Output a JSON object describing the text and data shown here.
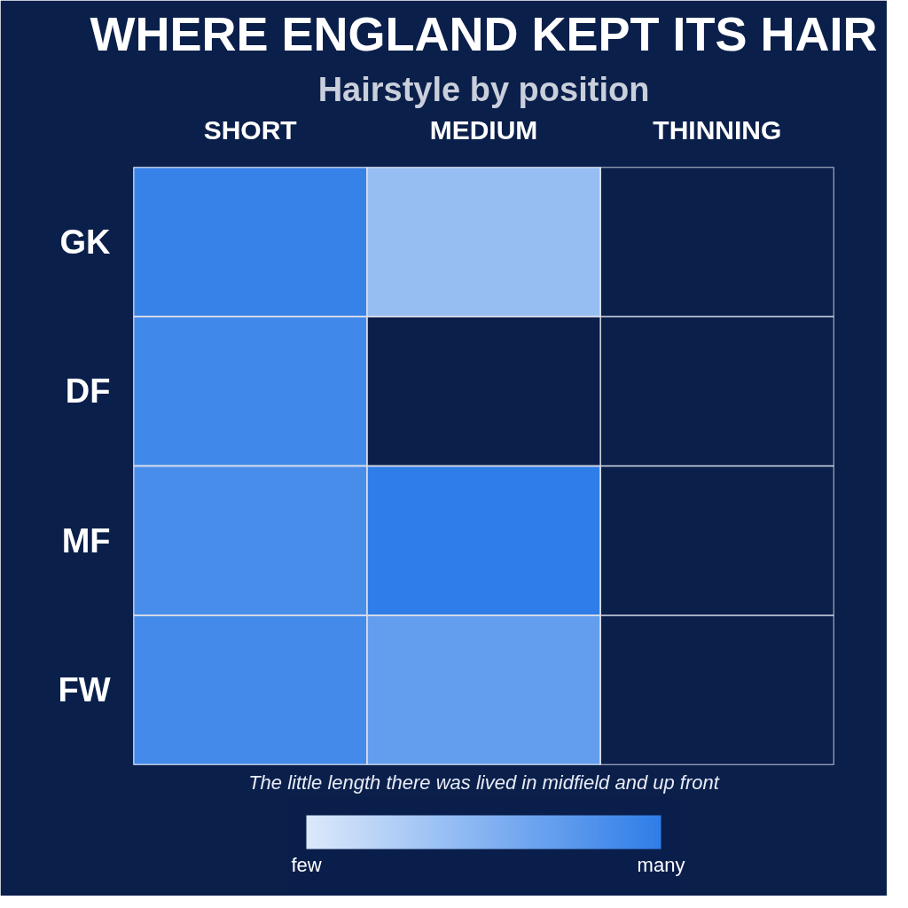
{
  "chart_data": {
    "type": "heatmap",
    "title": "WHERE ENGLAND KEPT ITS HAIR",
    "subtitle": "Hairstyle by position",
    "categories": [
      "SHORT",
      "MEDIUM",
      "THINNING"
    ],
    "y_categories": [
      "GK",
      "DF",
      "MF",
      "FW"
    ],
    "cells": [
      [
        0.95,
        0.4,
        null
      ],
      [
        0.9,
        null,
        null
      ],
      [
        0.85,
        1.0,
        null
      ],
      [
        0.88,
        0.7,
        null
      ]
    ],
    "clim": [
      0,
      1
    ],
    "cticks": [
      {
        "value": 0,
        "label": "few"
      },
      {
        "value": 1,
        "label": "many"
      }
    ],
    "annotations": [
      "The little length there was lived in midfield and up front"
    ]
  }
}
